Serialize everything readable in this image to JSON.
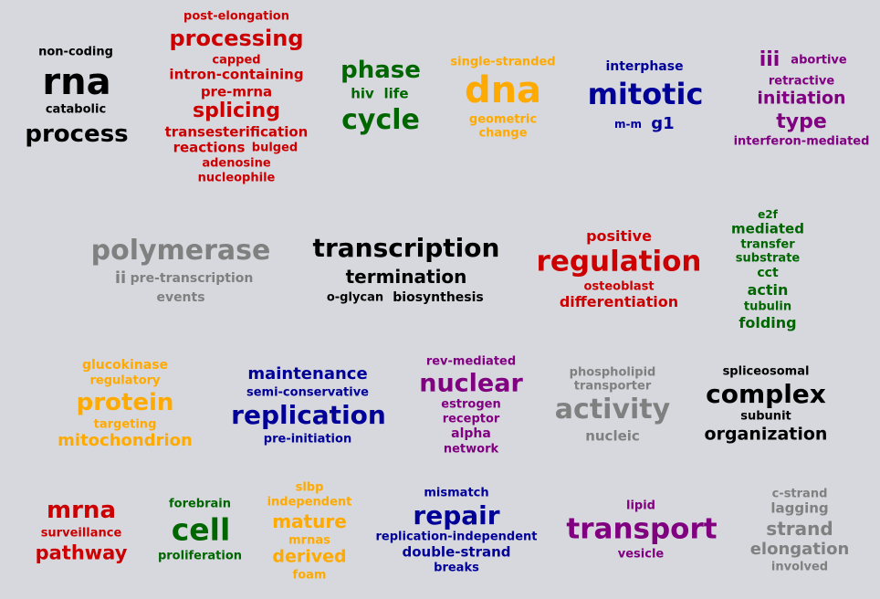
{
  "colors": {
    "black": "#000000",
    "red": "#cc0000",
    "green": "#006600",
    "orange": "#ffaa00",
    "navy": "#000099",
    "purple": "#800080",
    "gray": "#808080"
  },
  "clusters": {
    "c1": {
      "w1": "non-coding",
      "w2": "rna",
      "w3": "catabolic",
      "w4": "process"
    },
    "c2": {
      "w1": "post-elongation",
      "w2": "processing",
      "w3": "capped",
      "w4": "intron-containing",
      "w5": "pre-mrna",
      "w6": "splicing",
      "w7": "transesterification",
      "w8": "reactions",
      "w9": "bulged",
      "w10": "adenosine",
      "w11": "nucleophile"
    },
    "c3": {
      "w1": "phase",
      "w2": "hiv",
      "w3": "life",
      "w4": "cycle"
    },
    "c4": {
      "w1": "single-stranded",
      "w2": "dna",
      "w3": "geometric",
      "w4": "change"
    },
    "c5": {
      "w1": "interphase",
      "w2": "mitotic",
      "w3": "m-m",
      "w4": "g1"
    },
    "c6": {
      "w1": "iii",
      "w2": "abortive",
      "w3": "retractive",
      "w4": "initiation",
      "w5": "type",
      "w6": "interferon-mediated"
    },
    "c7": {
      "w1": "polymerase",
      "w2": "ii",
      "w3": "pre-transcription",
      "w4": "events"
    },
    "c8": {
      "w1": "transcription",
      "w2": "termination",
      "w3": "o-glycan",
      "w4": "biosynthesis"
    },
    "c9": {
      "w1": "positive",
      "w2": "regulation",
      "w3": "osteoblast",
      "w4": "differentiation"
    },
    "c10": {
      "w1": "e2f",
      "w2": "mediated",
      "w3": "transfer",
      "w4": "substrate",
      "w5": "cct",
      "w6": "actin",
      "w7": "tubulin",
      "w8": "folding"
    },
    "c11": {
      "w1": "glucokinase",
      "w2": "regulatory",
      "w3": "protein",
      "w4": "targeting",
      "w5": "mitochondrion"
    },
    "c12": {
      "w1": "maintenance",
      "w2": "semi-conservative",
      "w3": "replication",
      "w4": "pre-initiation"
    },
    "c13": {
      "w1": "rev-mediated",
      "w2": "nuclear",
      "w3": "estrogen",
      "w4": "receptor",
      "w5": "alpha",
      "w6": "network"
    },
    "c14": {
      "w1": "phospholipid",
      "w2": "transporter",
      "w3": "activity",
      "w4": "nucleic"
    },
    "c15": {
      "w1": "spliceosomal",
      "w2": "complex",
      "w3": "subunit",
      "w4": "organization"
    },
    "c16": {
      "w1": "mrna",
      "w2": "surveillance",
      "w3": "pathway"
    },
    "c17": {
      "w1": "forebrain",
      "w2": "cell",
      "w3": "proliferation"
    },
    "c18": {
      "w1": "slbp",
      "w2": "independent",
      "w3": "mature",
      "w4": "mrnas",
      "w5": "derived",
      "w6": "foam"
    },
    "c19": {
      "w1": "mismatch",
      "w2": "repair",
      "w3": "replication-independent",
      "w4": "double-strand",
      "w5": "breaks"
    },
    "c20": {
      "w1": "lipid",
      "w2": "transport",
      "w3": "vesicle"
    },
    "c21": {
      "w1": "c-strand",
      "w2": "lagging",
      "w3": "strand",
      "w4": "elongation",
      "w5": "involved"
    }
  }
}
